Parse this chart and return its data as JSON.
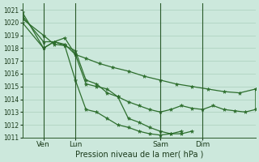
{
  "xlabel": "Pression niveau de la mer( hPa )",
  "ylim": [
    1011,
    1021.5
  ],
  "yticks": [
    1011,
    1012,
    1013,
    1014,
    1015,
    1016,
    1017,
    1018,
    1019,
    1020,
    1021
  ],
  "bg_color": "#cce8dc",
  "grid_color": "#aacfbc",
  "line_color": "#2d6e2d",
  "xtick_labels": [
    "Ven",
    "Lun",
    "Sam",
    "Dim"
  ],
  "xtick_positions": [
    8,
    20,
    52,
    68
  ],
  "vline_positions": [
    8,
    20,
    52,
    68
  ],
  "xlim": [
    0,
    88
  ],
  "series": [
    [
      1020.8,
      1018.0,
      1018.5,
      1018.3,
      1017.5,
      1017.2,
      1016.8,
      1016.5,
      1016.2,
      1015.8,
      1015.5,
      1015.2,
      1015.0,
      1014.8,
      1014.6,
      1014.5,
      1014.8
    ],
    [
      1020.5,
      1018.5,
      1018.5,
      1018.8,
      1017.5,
      1015.2,
      1015.0,
      1014.8,
      1014.2,
      1013.8,
      1013.5,
      1013.2,
      1013.0,
      1013.2,
      1013.5,
      1013.3,
      1013.2,
      1013.5,
      1013.2,
      1013.1,
      1013.0,
      1013.2,
      1014.8
    ],
    [
      1020.3,
      1019.0,
      1018.3,
      1018.2,
      1017.8,
      1015.5,
      1015.2,
      1014.5,
      1014.2,
      1012.5,
      1012.2,
      1011.8,
      1011.5,
      1011.3,
      1011.3,
      1011.5
    ],
    [
      1020.0,
      1018.0,
      1018.5,
      1018.2,
      1015.5,
      1013.2,
      1013.0,
      1012.5,
      1012.0,
      1011.8,
      1011.5,
      1011.3,
      1011.2,
      1011.3,
      1011.5
    ]
  ],
  "series_x": [
    [
      0,
      8,
      12,
      16,
      20,
      24,
      29,
      34,
      40,
      46,
      52,
      58,
      64,
      70,
      76,
      82,
      88
    ],
    [
      0,
      8,
      12,
      16,
      20,
      24,
      28,
      32,
      36,
      40,
      44,
      48,
      52,
      56,
      60,
      64,
      68,
      72,
      76,
      80,
      84,
      88,
      88
    ],
    [
      0,
      8,
      12,
      16,
      20,
      24,
      28,
      32,
      36,
      40,
      44,
      48,
      52,
      56,
      60,
      64
    ],
    [
      0,
      8,
      12,
      16,
      20,
      24,
      28,
      32,
      36,
      40,
      44,
      48,
      52,
      56,
      60
    ]
  ]
}
